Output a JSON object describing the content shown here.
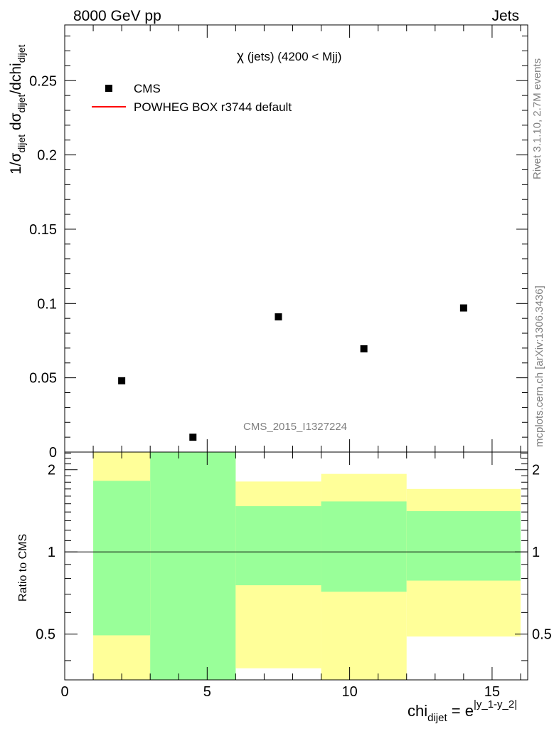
{
  "header": {
    "left": "8000 GeV pp",
    "right": "Jets"
  },
  "side_labels": {
    "rivet": "Rivet 3.1.10,  2.7M events",
    "mcplots": "mcplots.cern.ch [arXiv:1306.3436]"
  },
  "watermark": "CMS_2015_I1327224",
  "main_plot": {
    "title_chi": "χ",
    "title_rest": " (jets) (4200 < Mjj)",
    "ylabel": {
      "a": "1/σ",
      "a_sub": "dijet",
      "b": " dσ",
      "b_sub": "dijet",
      "c": "/dchi",
      "c_sub": "dijet"
    },
    "xlim": [
      0,
      16.25
    ],
    "ylim": [
      0,
      0.2875
    ],
    "yticks": [
      {
        "value": 0.05,
        "label": "0.05"
      },
      {
        "value": 0.1,
        "label": "0.1"
      },
      {
        "value": 0.15,
        "label": "0.15"
      },
      {
        "value": 0.2,
        "label": "0.2"
      },
      {
        "value": 0.25,
        "label": "0.25"
      },
      {
        "value": 0,
        "label": "0"
      }
    ]
  },
  "legend": [
    {
      "name": "CMS",
      "marker": "square",
      "color": "#000000"
    },
    {
      "name": "POWHEG BOX r3744 default",
      "marker": "line",
      "color": "#ff0000"
    }
  ],
  "chart_data": {
    "type": "scatter",
    "series": [
      {
        "name": "CMS",
        "x": [
          2,
          4.5,
          7.5,
          10.5,
          14
        ],
        "y": [
          0.048,
          0.01,
          0.091,
          0.0695,
          0.097
        ]
      }
    ],
    "ratio": {
      "ylabel": "Ratio to CMS",
      "ylim": [
        0.34,
        2.32
      ],
      "yticks": [
        {
          "value": 0.5,
          "label": "0.5"
        },
        {
          "value": 1,
          "label": "1"
        },
        {
          "value": 2,
          "label": "2"
        }
      ],
      "reference_line": 1,
      "bins": [
        {
          "x0": 1,
          "x1": 3,
          "yellow": [
            0.34,
            2.32
          ],
          "green_lo": 0.495,
          "green_hi": 1.82,
          "yellow_lo": 0.34,
          "yellow_hi": 2.32,
          "y_lo": 0.34,
          "y_hi": 1.84
        },
        {
          "x0": 3,
          "x1": 6,
          "yellow_lo": 0.34,
          "yellow_hi": 2.32,
          "green_lo": 0.34,
          "green_hi": 2.32
        },
        {
          "x0": 6,
          "x1": 9,
          "yellow_lo": 0.375,
          "yellow_hi": 1.81,
          "green_lo": 0.755,
          "green_hi": 1.47
        },
        {
          "x0": 9,
          "x1": 12,
          "yellow_lo": 0.34,
          "yellow_hi": 1.93,
          "green_lo": 0.715,
          "green_hi": 1.53
        },
        {
          "x0": 12,
          "x1": 16,
          "yellow_lo": 0.49,
          "yellow_hi": 1.7,
          "green_lo": 0.785,
          "green_hi": 1.41
        }
      ],
      "band_colors": {
        "inner": "#99ff99",
        "outer": "#ffff99"
      }
    },
    "xlabel": {
      "main": "chi",
      "sub": "dijet",
      "eq": " = e",
      "sup": "|y_1-y_2|"
    },
    "xticks": [
      {
        "value": 0,
        "label": "0"
      },
      {
        "value": 5,
        "label": "5"
      },
      {
        "value": 10,
        "label": "10"
      },
      {
        "value": 15,
        "label": "15"
      }
    ]
  }
}
